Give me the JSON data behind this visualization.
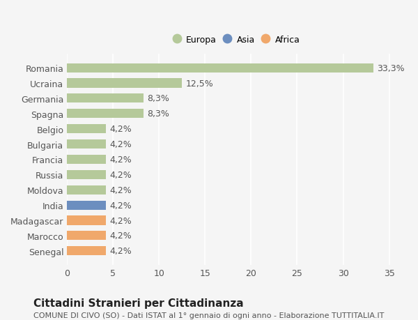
{
  "categories": [
    "Romania",
    "Ucraina",
    "Germania",
    "Spagna",
    "Belgio",
    "Bulgaria",
    "Francia",
    "Russia",
    "Moldova",
    "India",
    "Madagascar",
    "Marocco",
    "Senegal"
  ],
  "values": [
    33.3,
    12.5,
    8.3,
    8.3,
    4.2,
    4.2,
    4.2,
    4.2,
    4.2,
    4.2,
    4.2,
    4.2,
    4.2
  ],
  "labels": [
    "33,3%",
    "12,5%",
    "8,3%",
    "8,3%",
    "4,2%",
    "4,2%",
    "4,2%",
    "4,2%",
    "4,2%",
    "4,2%",
    "4,2%",
    "4,2%",
    "4,2%"
  ],
  "continents": [
    "Europa",
    "Europa",
    "Europa",
    "Europa",
    "Europa",
    "Europa",
    "Europa",
    "Europa",
    "Europa",
    "Asia",
    "Africa",
    "Africa",
    "Africa"
  ],
  "colors": {
    "Europa": "#b5c99a",
    "Asia": "#6c8ebf",
    "Africa": "#f0a86b"
  },
  "legend_order": [
    "Europa",
    "Asia",
    "Africa"
  ],
  "background_color": "#f5f5f5",
  "title": "Cittadini Stranieri per Cittadinanza",
  "subtitle": "COMUNE DI CIVO (SO) - Dati ISTAT al 1° gennaio di ogni anno - Elaborazione TUTTITALIA.IT",
  "xlim": [
    0,
    37
  ],
  "xticks": [
    0,
    5,
    10,
    15,
    20,
    25,
    30,
    35
  ],
  "bar_height": 0.6,
  "label_fontsize": 9,
  "tick_fontsize": 9,
  "title_fontsize": 11,
  "subtitle_fontsize": 8
}
